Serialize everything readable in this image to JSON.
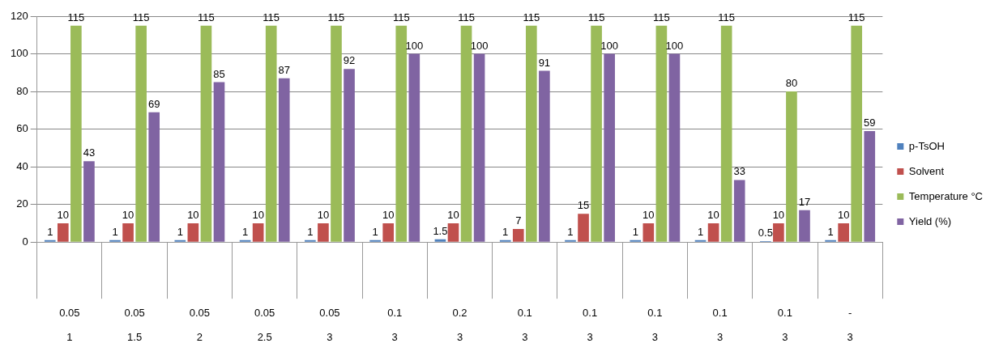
{
  "chart_data": {
    "type": "bar",
    "categories": [
      "0.05\n1",
      "0.05\n1.5",
      "0.05\n2",
      "0.05\n2.5",
      "0.05\n3",
      "0.1\n3",
      "0.2\n3",
      "0.1\n3",
      "0.1\n3",
      "0.1\n3",
      "0.1\n3",
      "0.1\n3",
      "-\n3"
    ],
    "series": [
      {
        "name": "p-TsOH",
        "color": "#4f81bd",
        "values": [
          1,
          1,
          1,
          1,
          1,
          1,
          1.5,
          1,
          1,
          1,
          1,
          0.5,
          1
        ]
      },
      {
        "name": "Solvent",
        "color": "#c0504d",
        "values": [
          10,
          10,
          10,
          10,
          10,
          10,
          10,
          7,
          15,
          10,
          10,
          10,
          10
        ]
      },
      {
        "name": "Temperature °C",
        "color": "#9bbb59",
        "values": [
          115,
          115,
          115,
          115,
          115,
          115,
          115,
          115,
          115,
          115,
          115,
          80,
          115
        ]
      },
      {
        "name": "Yield (%)",
        "color": "#8064a2",
        "values": [
          43,
          69,
          85,
          87,
          92,
          100,
          100,
          91,
          100,
          100,
          33,
          17,
          59
        ]
      }
    ],
    "ylim": [
      0,
      120
    ],
    "yticks": [
      0,
      20,
      40,
      60,
      80,
      100,
      120
    ],
    "grid": "y",
    "legend": "right",
    "data_labels": true
  }
}
